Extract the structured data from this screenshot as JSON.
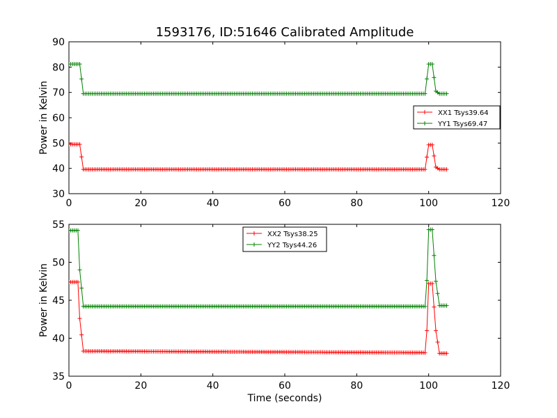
{
  "chart_data": [
    {
      "type": "line",
      "title": "1593176, ID:51646 Calibrated Amplitude",
      "xlabel": "",
      "ylabel": "Power in Kelvin",
      "xlim": [
        0,
        120
      ],
      "ylim": [
        30,
        90
      ],
      "xticks": [
        "0",
        "20",
        "40",
        "60",
        "80",
        "100",
        "120"
      ],
      "yticks": [
        "30",
        "40",
        "50",
        "60",
        "70",
        "80",
        "90"
      ],
      "grid": false,
      "legend_position": "center-right",
      "series": [
        {
          "name": "XX1 Tsys39.64",
          "color": "#ff0000",
          "marker": "+",
          "x": [
            0,
            1,
            2,
            3,
            4,
            99,
            100,
            101,
            102,
            103,
            105
          ],
          "values": [
            49.5,
            49.5,
            49.5,
            49.5,
            39.6,
            39.6,
            49.3,
            49.3,
            40.5,
            39.6,
            39.6
          ]
        },
        {
          "name": "YY1 Tsys69.47",
          "color": "#008000",
          "marker": "+",
          "x": [
            0,
            1,
            2,
            3,
            4,
            99,
            100,
            101,
            102,
            103,
            105
          ],
          "values": [
            81.2,
            81.2,
            81.2,
            81.2,
            69.5,
            69.5,
            81.2,
            81.2,
            70.5,
            69.5,
            69.5
          ]
        }
      ]
    },
    {
      "type": "line",
      "title": "",
      "xlabel": "Time (seconds)",
      "ylabel": "Power in Kelvin",
      "xlim": [
        0,
        120
      ],
      "ylim": [
        35,
        55
      ],
      "xticks": [
        "0",
        "20",
        "40",
        "60",
        "80",
        "100",
        "120"
      ],
      "yticks": [
        "35",
        "40",
        "45",
        "50",
        "55"
      ],
      "grid": false,
      "legend_position": "top-center",
      "series": [
        {
          "name": "XX2 Tsys38.25",
          "color": "#ff0000",
          "marker": "+",
          "x": [
            0,
            1,
            2,
            2.5,
            3,
            4,
            99,
            99.5,
            100,
            101,
            102,
            103,
            105
          ],
          "values": [
            47.4,
            47.4,
            47.4,
            47.4,
            42.6,
            38.3,
            38.1,
            41.0,
            47.2,
            47.2,
            41.0,
            38.0,
            38.0
          ]
        },
        {
          "name": "YY2 Tsys44.26",
          "color": "#008000",
          "marker": "+",
          "x": [
            0,
            1,
            2,
            2.5,
            3,
            4,
            99,
            99.5,
            100,
            101,
            102,
            103,
            105
          ],
          "values": [
            54.2,
            54.2,
            54.2,
            54.2,
            49.0,
            44.2,
            44.2,
            47.6,
            54.3,
            54.3,
            47.5,
            44.3,
            44.3
          ]
        }
      ]
    }
  ]
}
